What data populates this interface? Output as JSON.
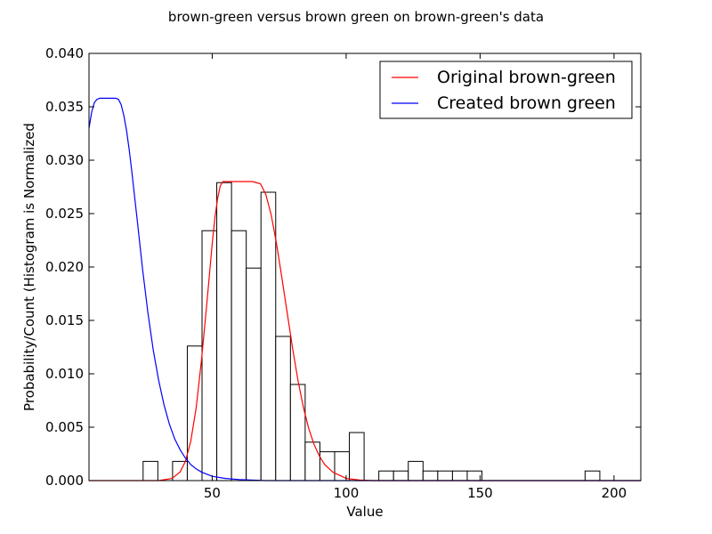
{
  "chart_data": {
    "type": "histogram",
    "title": "brown-green versus brown green on brown-green's data",
    "xlabel": "Value",
    "ylabel": "Probability/Count (Histogram is Normalized",
    "xlim": [
      4,
      210
    ],
    "ylim": [
      0,
      0.04
    ],
    "xticks": [
      50,
      100,
      150,
      200
    ],
    "xtick_labels": [
      "50",
      "100",
      "150",
      "200"
    ],
    "yticks": [
      0.0,
      0.005,
      0.01,
      0.015,
      0.02,
      0.025,
      0.03,
      0.035,
      0.04
    ],
    "ytick_labels": [
      "0.000",
      "0.005",
      "0.010",
      "0.015",
      "0.020",
      "0.025",
      "0.030",
      "0.035",
      "0.040"
    ],
    "grid": false,
    "legend_position": "top-right",
    "histogram": {
      "bin_start": 24.2,
      "bin_width": 5.5,
      "values": [
        0.0018,
        0.0,
        0.0018,
        0.0126,
        0.0234,
        0.0279,
        0.0234,
        0.0199,
        0.027,
        0.0135,
        0.009,
        0.0036,
        0.0027,
        0.0027,
        0.0045,
        0.0,
        0.0009,
        0.0009,
        0.0018,
        0.0009,
        0.0009,
        0.0009,
        0.0009,
        0.0,
        0.0,
        0.0,
        0.0,
        0.0,
        0.0,
        0.0,
        0.0009
      ],
      "fill": "#ffffff",
      "edge_color": "#000000"
    },
    "series": [
      {
        "name": "Original brown-green",
        "color": "#ff0000",
        "x": [
          4,
          30,
          35,
          38,
          40,
          42,
          44,
          46,
          48,
          50,
          51,
          52,
          53,
          54,
          56,
          60,
          65,
          68,
          70,
          72,
          74,
          76,
          78,
          80,
          82,
          84,
          86,
          88,
          90,
          92,
          95,
          100,
          105,
          110,
          120,
          150,
          210
        ],
        "y": [
          0.0,
          0.0,
          0.0002,
          0.0008,
          0.0018,
          0.0037,
          0.0068,
          0.0113,
          0.0166,
          0.0222,
          0.0246,
          0.0264,
          0.0276,
          0.028,
          0.028,
          0.028,
          0.028,
          0.0278,
          0.0268,
          0.0249,
          0.0222,
          0.019,
          0.0157,
          0.0124,
          0.0094,
          0.0069,
          0.0049,
          0.0034,
          0.0023,
          0.0015,
          0.0008,
          0.0002,
          5e-05,
          0.0,
          0.0,
          0.0,
          0.0
        ]
      },
      {
        "name": "Created brown green",
        "color": "#0000ff",
        "x": [
          4,
          5,
          6,
          7,
          8,
          10,
          12,
          14,
          15,
          16,
          17,
          18,
          19,
          20,
          22,
          24,
          26,
          28,
          30,
          32,
          34,
          36,
          38,
          40,
          42,
          44,
          46,
          48,
          50,
          55,
          60,
          70,
          80,
          100,
          150,
          210
        ],
        "y": [
          0.033,
          0.0345,
          0.0354,
          0.0357,
          0.0358,
          0.0358,
          0.0358,
          0.0358,
          0.0357,
          0.0352,
          0.0342,
          0.0328,
          0.031,
          0.0289,
          0.0244,
          0.0198,
          0.0157,
          0.0122,
          0.0094,
          0.0071,
          0.0053,
          0.0039,
          0.0029,
          0.0021,
          0.0015,
          0.0011,
          0.0008,
          0.0006,
          0.0004,
          0.0002,
          0.0001,
          0.0,
          0.0,
          0.0,
          0.0,
          0.0
        ]
      }
    ]
  }
}
